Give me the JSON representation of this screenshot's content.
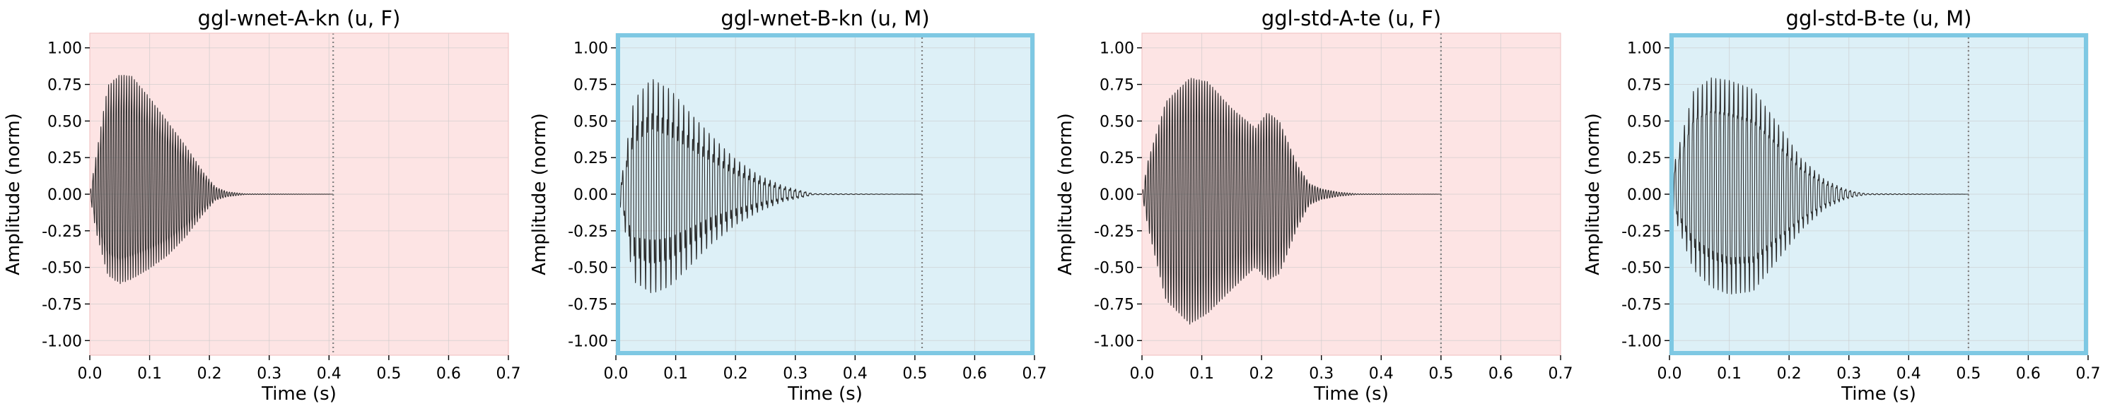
{
  "chart_data": [
    {
      "type": "line",
      "title": "ggl-wnet-A-kn (u, F)",
      "xlabel": "Time (s)",
      "ylabel": "Amplitude (norm)",
      "xlim": [
        0,
        0.7
      ],
      "ylim": [
        -1.1,
        1.1
      ],
      "xticks": [
        "0.0",
        "0.1",
        "0.2",
        "0.3",
        "0.4",
        "0.5",
        "0.6",
        "0.7"
      ],
      "yticks": [
        "1.00",
        "0.75",
        "0.50",
        "0.25",
        "0.00",
        "-0.25",
        "-0.50",
        "-0.75",
        "-1.00"
      ],
      "grid": true,
      "background": "#fde4e4",
      "highlight_border": false,
      "end_marker_x": 0.407,
      "waveform": {
        "end": 0.407,
        "envelope_x": [
          0,
          0.01,
          0.03,
          0.05,
          0.07,
          0.1,
          0.13,
          0.16,
          0.19,
          0.21,
          0.23,
          0.26,
          0.407
        ],
        "pos": [
          0,
          0.3,
          0.9,
          0.99,
          0.98,
          0.8,
          0.6,
          0.4,
          0.18,
          0.06,
          0.02,
          0.003,
          0
        ],
        "neg": [
          0,
          -0.3,
          -0.65,
          -0.72,
          -0.68,
          -0.6,
          -0.5,
          -0.35,
          -0.16,
          -0.05,
          -0.02,
          -0.003,
          0
        ],
        "core": 0.3,
        "period": 0.0043
      }
    },
    {
      "type": "line",
      "title": "ggl-wnet-B-kn (u, M)",
      "xlabel": "Time (s)",
      "ylabel": "Amplitude (norm)",
      "xlim": [
        0,
        0.7
      ],
      "ylim": [
        -1.1,
        1.1
      ],
      "xticks": [
        "0.0",
        "0.1",
        "0.2",
        "0.3",
        "0.4",
        "0.5",
        "0.6",
        "0.7"
      ],
      "yticks": [
        "1.00",
        "0.75",
        "0.50",
        "0.25",
        "0.00",
        "-0.25",
        "-0.50",
        "-0.75",
        "-1.00"
      ],
      "grid": true,
      "background": "#ddf0f7",
      "highlight_border": true,
      "border_color": "#7ec8e3",
      "end_marker_x": 0.512,
      "waveform": {
        "end": 0.512,
        "envelope_x": [
          0,
          0.01,
          0.03,
          0.06,
          0.09,
          0.12,
          0.16,
          0.2,
          0.24,
          0.28,
          0.31,
          0.33,
          0.512
        ],
        "pos": [
          0,
          0.15,
          0.8,
          0.99,
          0.9,
          0.72,
          0.5,
          0.3,
          0.16,
          0.07,
          0.03,
          0.005,
          0
        ],
        "neg": [
          0,
          -0.15,
          -0.72,
          -0.8,
          -0.75,
          -0.6,
          -0.4,
          -0.25,
          -0.14,
          -0.06,
          -0.03,
          -0.005,
          0
        ],
        "core": 0.55,
        "period": 0.0085
      }
    },
    {
      "type": "line",
      "title": "ggl-std-A-te (u, F)",
      "xlabel": "Time (s)",
      "ylabel": "Amplitude (norm)",
      "xlim": [
        0,
        0.7
      ],
      "ylim": [
        -1.1,
        1.1
      ],
      "xticks": [
        "0.0",
        "0.1",
        "0.2",
        "0.3",
        "0.4",
        "0.5",
        "0.6",
        "0.7"
      ],
      "yticks": [
        "1.00",
        "0.75",
        "0.50",
        "0.25",
        "0.00",
        "-0.25",
        "-0.50",
        "-0.75",
        "-1.00"
      ],
      "grid": true,
      "background": "#fde4e4",
      "highlight_border": false,
      "end_marker_x": 0.5,
      "waveform": {
        "end": 0.5,
        "envelope_x": [
          0,
          0.01,
          0.04,
          0.08,
          0.11,
          0.15,
          0.19,
          0.21,
          0.23,
          0.26,
          0.28,
          0.3,
          0.33,
          0.36,
          0.5
        ],
        "pos": [
          0,
          0.25,
          0.7,
          0.88,
          0.85,
          0.65,
          0.5,
          0.62,
          0.55,
          0.22,
          0.08,
          0.04,
          0.015,
          0.003,
          0
        ],
        "neg": [
          0,
          -0.25,
          -0.8,
          -0.98,
          -0.9,
          -0.72,
          -0.55,
          -0.65,
          -0.6,
          -0.25,
          -0.08,
          -0.04,
          -0.015,
          -0.003,
          0
        ],
        "core": 0.12,
        "period": 0.0045
      }
    },
    {
      "type": "line",
      "title": "ggl-std-B-te (u, M)",
      "xlabel": "Time (s)",
      "ylabel": "Amplitude (norm)",
      "xlim": [
        0,
        0.7
      ],
      "ylim": [
        -1.1,
        1.1
      ],
      "xticks": [
        "0.0",
        "0.1",
        "0.2",
        "0.3",
        "0.4",
        "0.5",
        "0.6",
        "0.7"
      ],
      "yticks": [
        "1.00",
        "0.75",
        "0.50",
        "0.25",
        "0.00",
        "-0.25",
        "-0.50",
        "-0.75",
        "-1.00"
      ],
      "grid": true,
      "background": "#ddf0f7",
      "highlight_border": true,
      "border_color": "#7ec8e3",
      "end_marker_x": 0.5,
      "waveform": {
        "end": 0.5,
        "envelope_x": [
          0,
          0.01,
          0.04,
          0.07,
          0.1,
          0.14,
          0.18,
          0.22,
          0.26,
          0.29,
          0.31,
          0.33,
          0.5
        ],
        "pos": [
          0,
          0.3,
          0.88,
          0.99,
          0.96,
          0.88,
          0.6,
          0.3,
          0.12,
          0.05,
          0.02,
          0.005,
          0
        ],
        "neg": [
          0,
          -0.2,
          -0.6,
          -0.75,
          -0.82,
          -0.8,
          -0.55,
          -0.3,
          -0.12,
          -0.05,
          -0.02,
          -0.005,
          0
        ],
        "core": 0.42,
        "period": 0.0075
      }
    }
  ]
}
